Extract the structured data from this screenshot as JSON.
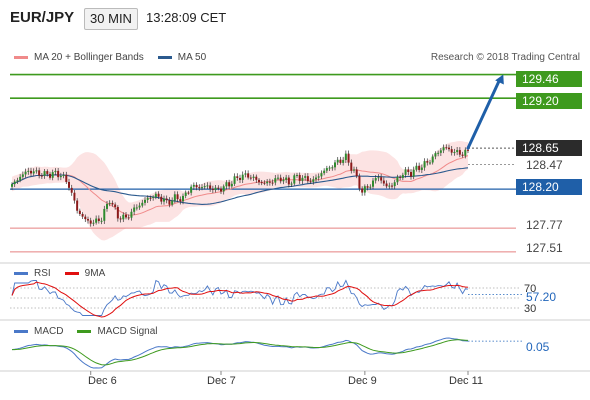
{
  "header": {
    "pair": "EUR/JPY",
    "timeframe": "30 MIN",
    "time": "13:28:09 CET"
  },
  "legend": [
    {
      "label": "MA 20 + Bollinger Bands",
      "color": "#f08a8a"
    },
    {
      "label": "MA 50",
      "color": "#2b5a8e"
    }
  ],
  "copyright": "Research © 2018 Trading Central",
  "price_labels": [
    {
      "text": "129.46",
      "style": "green"
    },
    {
      "text": "129.20",
      "style": "green"
    },
    {
      "text": "128.65",
      "style": "dark"
    },
    {
      "text": "128.47",
      "style": "plain"
    },
    {
      "text": "128.20",
      "style": "blue"
    },
    {
      "text": "127.77",
      "style": "plain"
    },
    {
      "text": "127.51",
      "style": "plain"
    }
  ],
  "x_labels": [
    "Dec 6",
    "Dec 7",
    "Dec 9",
    "Dec 11"
  ],
  "rsi": {
    "legend": [
      "RSI",
      "9MA"
    ],
    "colors": [
      "#4a78c8",
      "#e01010"
    ],
    "levels": [
      "70",
      "30"
    ],
    "value": "57.20"
  },
  "macd": {
    "legend": [
      "MACD",
      "MACD Signal"
    ],
    "colors": [
      "#4a78c8",
      "#3e9a1e"
    ],
    "value": "0.05"
  },
  "chart_data": {
    "type": "candlestick",
    "timeframe": "30 MIN",
    "levels": {
      "resistance_2": 129.46,
      "resistance_1": 129.2,
      "last_price": 128.65,
      "pivot": 128.2,
      "support_1": 127.77,
      "support_2": 127.51,
      "band_reference": 128.47
    },
    "close_path": [
      [
        0,
        128.24
      ],
      [
        3,
        128.34
      ],
      [
        6,
        128.4
      ],
      [
        9,
        128.38
      ],
      [
        12,
        128.36
      ],
      [
        15,
        128.37
      ],
      [
        18,
        128.36
      ],
      [
        21,
        128.24
      ],
      [
        24,
        127.97
      ],
      [
        27,
        127.86
      ],
      [
        30,
        127.83
      ],
      [
        33,
        127.88
      ],
      [
        36,
        128.09
      ],
      [
        39,
        127.9
      ],
      [
        42,
        127.88
      ],
      [
        45,
        127.98
      ],
      [
        48,
        128.05
      ],
      [
        51,
        128.12
      ],
      [
        54,
        128.12
      ],
      [
        57,
        128.05
      ],
      [
        60,
        128.1
      ],
      [
        63,
        128.1
      ],
      [
        66,
        128.23
      ],
      [
        69,
        128.22
      ],
      [
        72,
        128.23
      ],
      [
        75,
        128.19
      ],
      [
        78,
        128.22
      ],
      [
        81,
        128.28
      ],
      [
        84,
        128.34
      ],
      [
        87,
        128.35
      ],
      [
        90,
        128.3
      ],
      [
        93,
        128.26
      ],
      [
        96,
        128.29
      ],
      [
        99,
        128.32
      ],
      [
        102,
        128.27
      ],
      [
        105,
        128.34
      ],
      [
        108,
        128.31
      ],
      [
        111,
        128.29
      ],
      [
        114,
        128.38
      ],
      [
        117,
        128.44
      ],
      [
        120,
        128.5
      ],
      [
        123,
        128.55
      ],
      [
        126,
        128.39
      ],
      [
        129,
        128.17
      ],
      [
        132,
        128.25
      ],
      [
        135,
        128.34
      ],
      [
        138,
        128.22
      ],
      [
        141,
        128.27
      ],
      [
        144,
        128.38
      ],
      [
        147,
        128.38
      ],
      [
        150,
        128.44
      ],
      [
        153,
        128.49
      ],
      [
        156,
        128.58
      ],
      [
        159,
        128.66
      ],
      [
        162,
        128.62
      ],
      [
        165,
        128.59
      ],
      [
        168,
        128.61
      ]
    ],
    "forecast": {
      "from": [
        168,
        128.65
      ],
      "to": [
        181,
        129.46
      ]
    },
    "price_range": [
      127.42,
      129.62
    ],
    "x_ticks": [
      {
        "x": 29,
        "label": "Dec 6"
      },
      {
        "x": 77,
        "label": "Dec 7"
      },
      {
        "x": 130,
        "label": "Dec 9"
      },
      {
        "x": 168,
        "label": "Dec 11"
      }
    ],
    "rsi_levels": [
      70,
      30
    ],
    "rsi_last": 57.2,
    "macd_last": 0.05
  }
}
